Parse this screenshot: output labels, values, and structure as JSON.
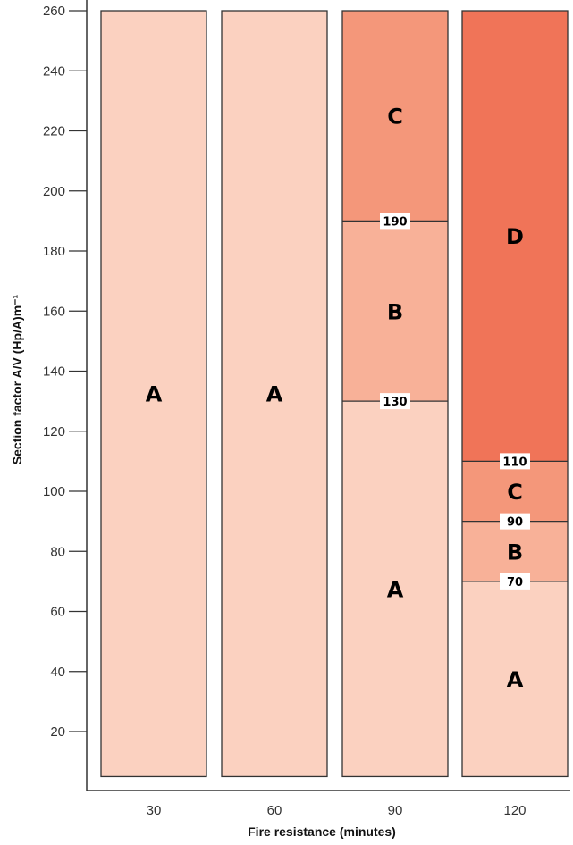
{
  "chart_data": {
    "type": "bar",
    "xlabel": "Fire resistance (minutes)",
    "ylabel": "Section factor A/V (Hp/A)m⁻¹",
    "ylim": [
      0,
      260
    ],
    "y_ticks": [
      20,
      40,
      60,
      80,
      100,
      120,
      140,
      160,
      180,
      200,
      220,
      240,
      260
    ],
    "categories": [
      "30",
      "60",
      "90",
      "120"
    ],
    "bars": [
      {
        "category": "30",
        "segments": [
          {
            "label": "A",
            "from": 5,
            "to": 260
          }
        ],
        "boundaries": []
      },
      {
        "category": "60",
        "segments": [
          {
            "label": "A",
            "from": 5,
            "to": 260
          }
        ],
        "boundaries": []
      },
      {
        "category": "90",
        "segments": [
          {
            "label": "A",
            "from": 5,
            "to": 130
          },
          {
            "label": "B",
            "from": 130,
            "to": 190
          },
          {
            "label": "C",
            "from": 190,
            "to": 260
          }
        ],
        "boundaries": [
          {
            "value": 130,
            "label": "130"
          },
          {
            "value": 190,
            "label": "190"
          }
        ]
      },
      {
        "category": "120",
        "segments": [
          {
            "label": "A",
            "from": 5,
            "to": 70
          },
          {
            "label": "B",
            "from": 70,
            "to": 90
          },
          {
            "label": "C",
            "from": 90,
            "to": 110
          },
          {
            "label": "D",
            "from": 110,
            "to": 260
          }
        ],
        "boundaries": [
          {
            "value": 70,
            "label": "70"
          },
          {
            "value": 90,
            "label": "90"
          },
          {
            "value": 110,
            "label": "110"
          }
        ]
      }
    ],
    "zone_colors": {
      "A": "#fbd1c0",
      "B": "#f8b198",
      "C": "#f4977a",
      "D": "#f07458"
    },
    "grid": false,
    "legend": "none"
  }
}
